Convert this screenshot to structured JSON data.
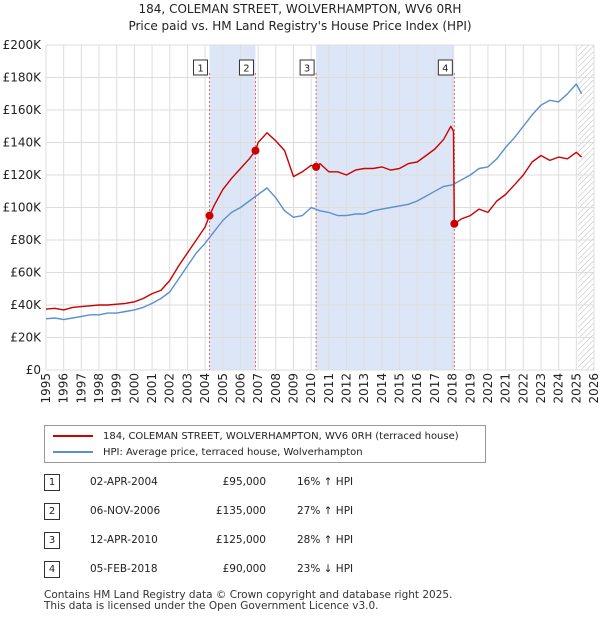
{
  "title_line1": "184, COLEMAN STREET, WOLVERHAMPTON, WV6 0RH",
  "title_line2": "Price paid vs. HM Land Registry's House Price Index (HPI)",
  "colors": {
    "property": "#cc0000",
    "hpi": "#5b8fcf",
    "shade": "#dde6f7",
    "grid": "#dddddd",
    "marker_line": "#e06666",
    "hatch": "#bbbbbb"
  },
  "legend": {
    "property_label": "184, COLEMAN STREET, WOLVERHAMPTON, WV6 0RH (terraced house)",
    "hpi_label": "HPI: Average price, terraced house, Wolverhampton"
  },
  "sales": [
    {
      "num": "1",
      "date": "02-APR-2004",
      "price": "£95,000",
      "hpi": "16% ↑ HPI"
    },
    {
      "num": "2",
      "date": "06-NOV-2006",
      "price": "£135,000",
      "hpi": "27% ↑ HPI"
    },
    {
      "num": "3",
      "date": "12-APR-2010",
      "price": "£125,000",
      "hpi": "28% ↑ HPI"
    },
    {
      "num": "4",
      "date": "05-FEB-2018",
      "price": "£90,000",
      "hpi": "23% ↓ HPI"
    }
  ],
  "footer_line1": "Contains HM Land Registry data © Crown copyright and database right 2025.",
  "footer_line2": "This data is licensed under the Open Government Licence v3.0.",
  "chart_data": {
    "type": "line",
    "title": "184, COLEMAN STREET, WOLVERHAMPTON, WV6 0RH",
    "subtitle": "Price paid vs. HM Land Registry's House Price Index (HPI)",
    "xlabel": "",
    "ylabel": "",
    "xlim": [
      1995,
      2026
    ],
    "ylim": [
      0,
      200000
    ],
    "yticks": [
      0,
      20000,
      40000,
      60000,
      80000,
      100000,
      120000,
      140000,
      160000,
      180000,
      200000
    ],
    "ytick_labels": [
      "£0",
      "£20K",
      "£40K",
      "£60K",
      "£80K",
      "£100K",
      "£120K",
      "£140K",
      "£160K",
      "£180K",
      "£200K"
    ],
    "xticks": [
      1995,
      1996,
      1997,
      1998,
      1999,
      2000,
      2001,
      2002,
      2003,
      2004,
      2005,
      2006,
      2007,
      2008,
      2009,
      2010,
      2011,
      2012,
      2013,
      2014,
      2015,
      2016,
      2017,
      2018,
      2019,
      2020,
      2021,
      2022,
      2023,
      2024,
      2025,
      2026
    ],
    "grid": true,
    "legend_position": "bottom",
    "shaded_ranges": [
      [
        2004.25,
        2006.85
      ],
      [
        2010.28,
        2018.1
      ]
    ],
    "forecast_from": 2025.1,
    "sale_points": [
      {
        "label": "1",
        "x": 2004.25,
        "y": 95000
      },
      {
        "label": "2",
        "x": 2006.85,
        "y": 135000
      },
      {
        "label": "3",
        "x": 2010.28,
        "y": 125000
      },
      {
        "label": "4",
        "x": 2018.1,
        "y": 90000
      }
    ],
    "series": [
      {
        "name": "184, COLEMAN STREET, WOLVERHAMPTON, WV6 0RH (terraced house)",
        "x": [
          1995.0,
          1995.5,
          1996.0,
          1996.5,
          1997.0,
          1997.5,
          1998.0,
          1998.5,
          1999.0,
          1999.5,
          2000.0,
          2000.5,
          2001.0,
          2001.5,
          2002.0,
          2002.5,
          2003.0,
          2003.5,
          2004.0,
          2004.25,
          2004.5,
          2005.0,
          2005.5,
          2006.0,
          2006.5,
          2006.85,
          2007.0,
          2007.5,
          2008.0,
          2008.5,
          2009.0,
          2009.5,
          2010.0,
          2010.28,
          2010.5,
          2011.0,
          2011.5,
          2012.0,
          2012.5,
          2013.0,
          2013.5,
          2014.0,
          2014.5,
          2015.0,
          2015.5,
          2016.0,
          2016.5,
          2017.0,
          2017.5,
          2017.9,
          2018.05,
          2018.1,
          2018.5,
          2019.0,
          2019.5,
          2020.0,
          2020.5,
          2021.0,
          2021.5,
          2022.0,
          2022.5,
          2023.0,
          2023.5,
          2024.0,
          2024.5,
          2025.0,
          2025.3
        ],
        "y": [
          37500,
          38000,
          37000,
          38500,
          39000,
          39500,
          40000,
          40000,
          40500,
          41000,
          42000,
          44000,
          47000,
          49000,
          55000,
          64000,
          72000,
          80000,
          88000,
          95000,
          101000,
          111000,
          118000,
          124000,
          130000,
          135000,
          140000,
          146000,
          141000,
          135000,
          119000,
          122000,
          126000,
          125000,
          127000,
          122000,
          122000,
          120000,
          123000,
          124000,
          124000,
          125000,
          123000,
          124000,
          127000,
          128000,
          132000,
          136000,
          142000,
          150000,
          147000,
          90000,
          93000,
          95000,
          99000,
          97000,
          104000,
          108000,
          114000,
          120000,
          128000,
          132000,
          129000,
          131000,
          130000,
          134000,
          131000
        ]
      },
      {
        "name": "HPI: Average price, terraced house, Wolverhampton",
        "x": [
          1995.0,
          1995.5,
          1996.0,
          1996.5,
          1997.0,
          1997.5,
          1998.0,
          1998.5,
          1999.0,
          1999.5,
          2000.0,
          2000.5,
          2001.0,
          2001.5,
          2002.0,
          2002.5,
          2003.0,
          2003.5,
          2004.0,
          2004.5,
          2005.0,
          2005.5,
          2006.0,
          2006.5,
          2007.0,
          2007.5,
          2008.0,
          2008.5,
          2009.0,
          2009.5,
          2010.0,
          2010.5,
          2011.0,
          2011.5,
          2012.0,
          2012.5,
          2013.0,
          2013.5,
          2014.0,
          2014.5,
          2015.0,
          2015.5,
          2016.0,
          2016.5,
          2017.0,
          2017.5,
          2018.0,
          2018.5,
          2019.0,
          2019.5,
          2020.0,
          2020.5,
          2021.0,
          2021.5,
          2022.0,
          2022.5,
          2023.0,
          2023.5,
          2024.0,
          2024.5,
          2025.0,
          2025.3
        ],
        "y": [
          31500,
          32000,
          31000,
          32000,
          33000,
          34000,
          34000,
          35000,
          35000,
          36000,
          37000,
          38500,
          41000,
          44000,
          48000,
          56000,
          64000,
          72000,
          78000,
          85000,
          92000,
          97000,
          100000,
          104000,
          108000,
          112000,
          106000,
          98000,
          94000,
          95000,
          100000,
          98000,
          97000,
          95000,
          95000,
          96000,
          96000,
          98000,
          99000,
          100000,
          101000,
          102000,
          104000,
          107000,
          110000,
          113000,
          114000,
          117000,
          120000,
          124000,
          125000,
          130000,
          137000,
          143000,
          150000,
          157000,
          163000,
          166000,
          165000,
          170000,
          176000,
          170000
        ]
      }
    ]
  }
}
